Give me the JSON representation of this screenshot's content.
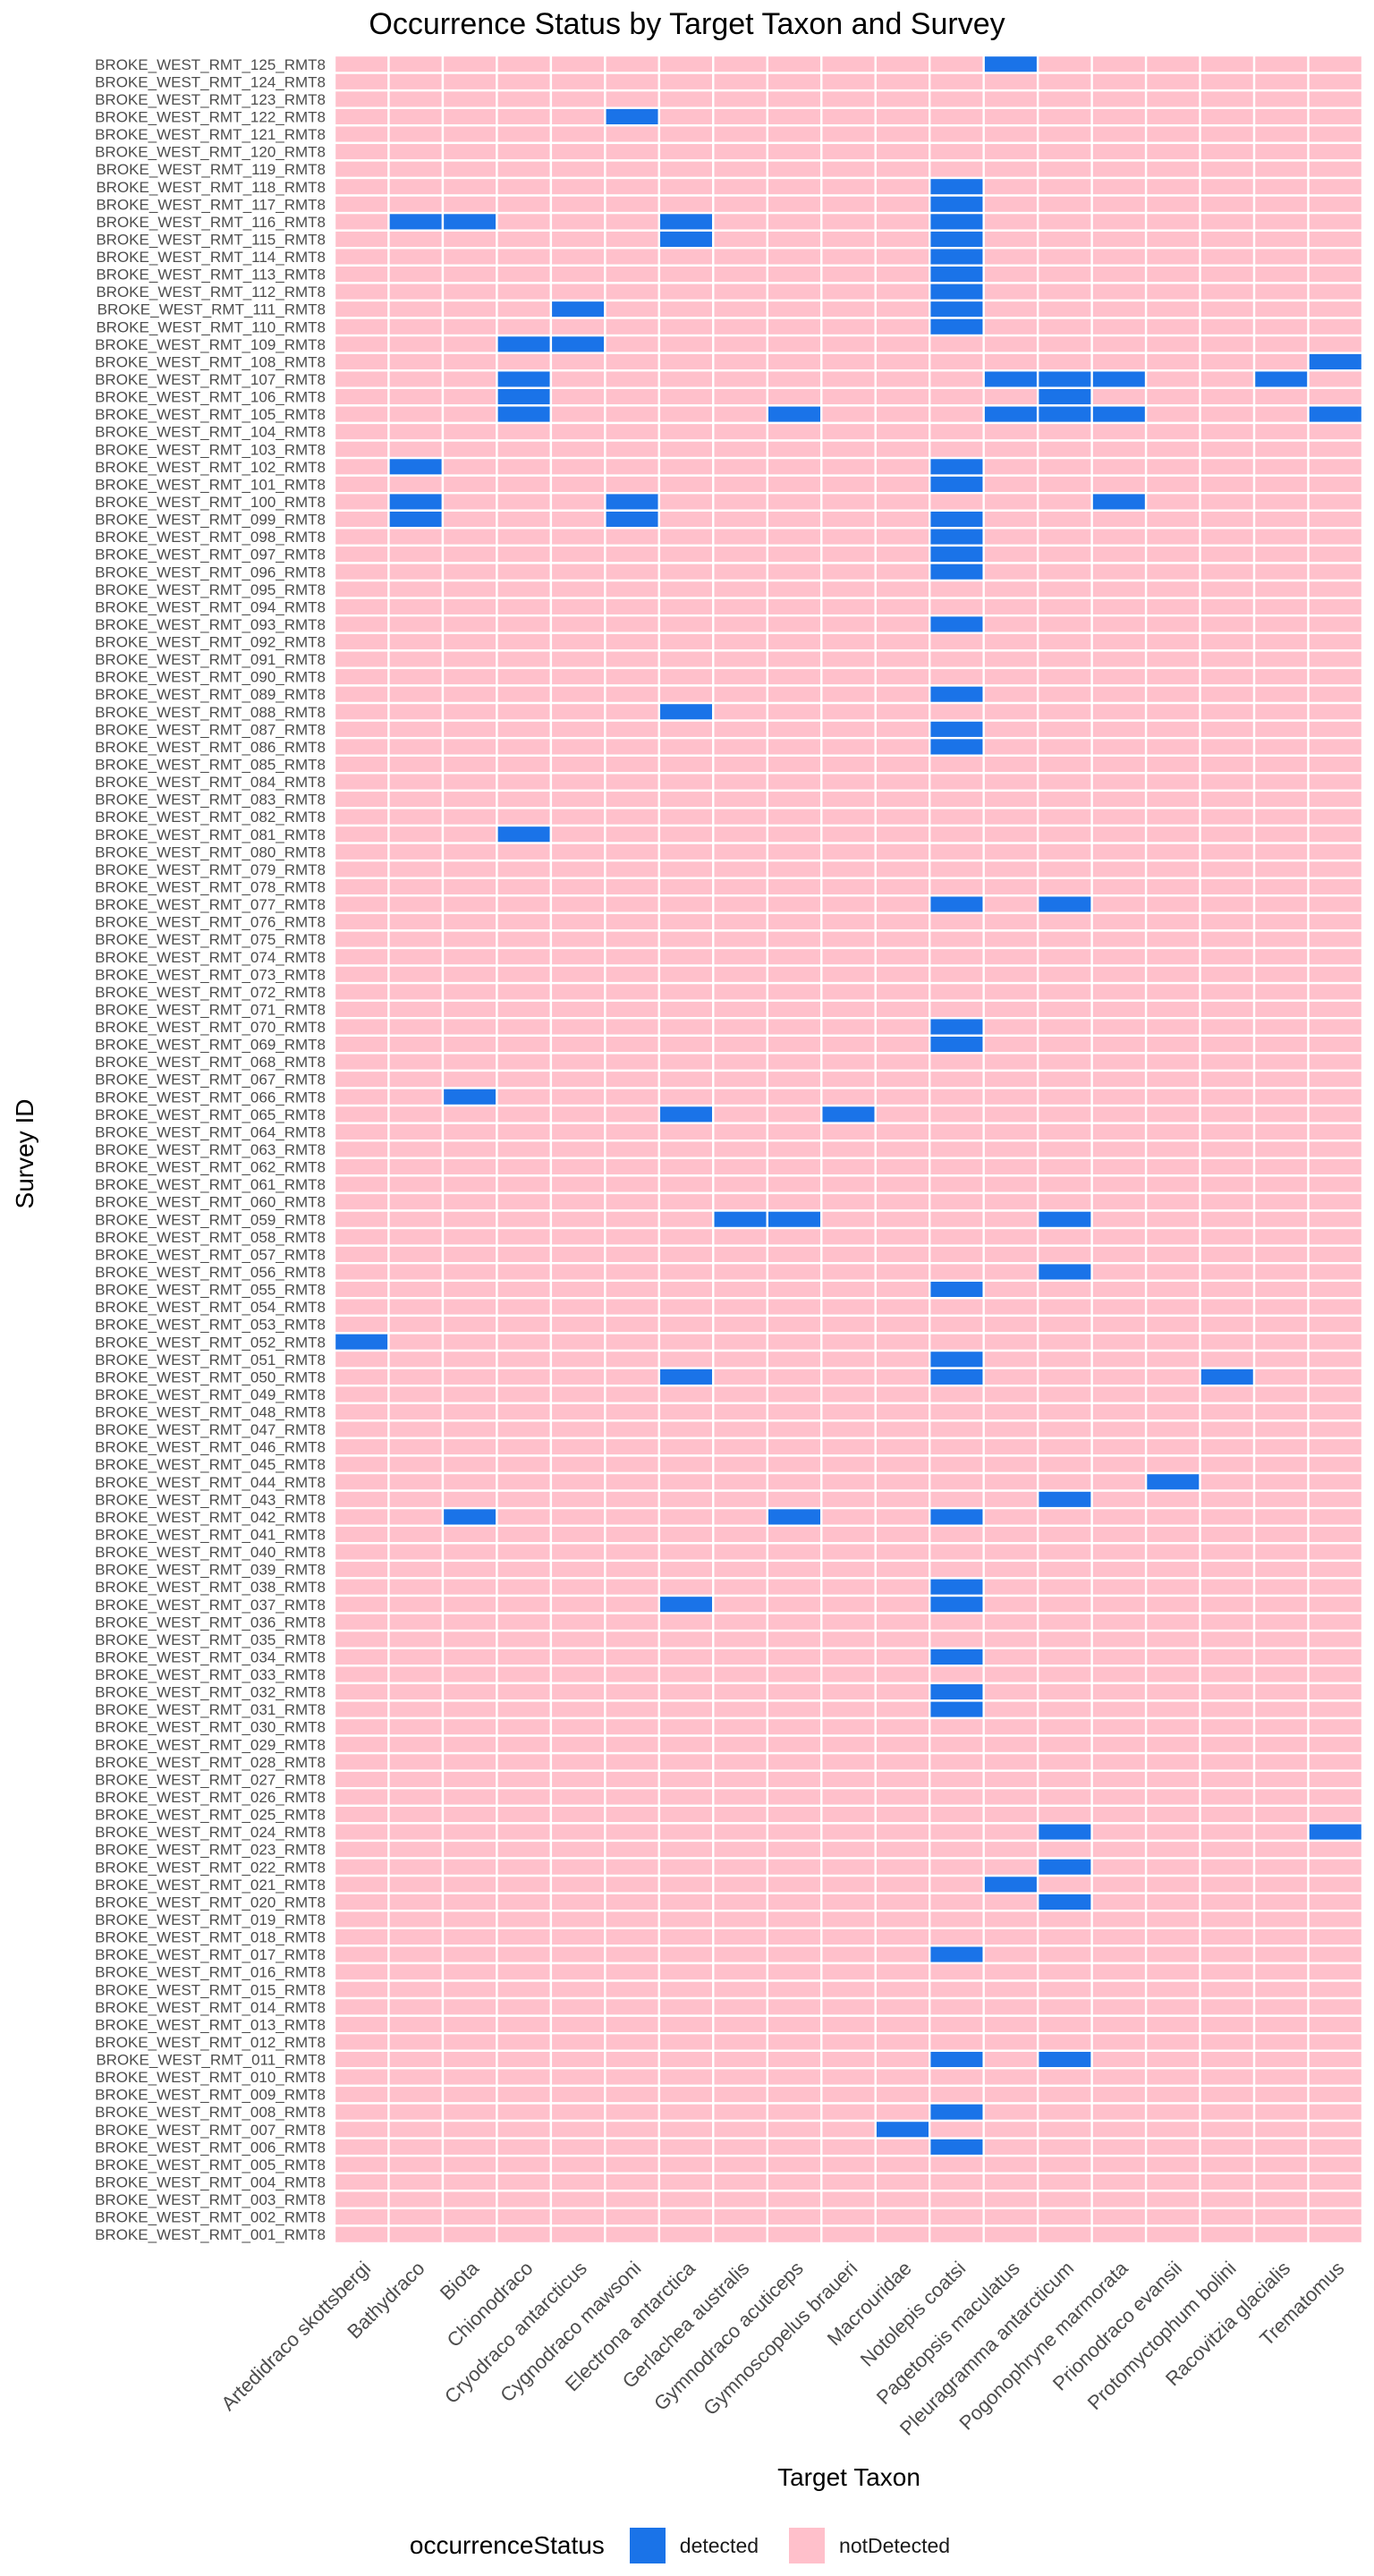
{
  "chart_data": {
    "type": "heatmap",
    "title": "Occurrence Status by Target Taxon and Survey",
    "xlabel": "Target Taxon",
    "ylabel": "Survey ID",
    "legend_title": "occurrenceStatus",
    "legend_position": "bottom",
    "categories_status": [
      "detected",
      "notDetected"
    ],
    "colors": {
      "detected": "#1a73e8",
      "notDetected": "#ffc0cb"
    },
    "x": [
      "Artedidraco skottsbergi",
      "Bathydraco",
      "Biota",
      "Chionodraco",
      "Cryodraco antarcticus",
      "Cygnodraco mawsoni",
      "Electrona antarctica",
      "Gerlachea australis",
      "Gymnodraco acuticeps",
      "Gymnoscopelus braueri",
      "Macrouridae",
      "Notolepis coatsi",
      "Pagetopsis maculatus",
      "Pleuragramma antarcticum",
      "Pogonophryne marmorata",
      "Prionodraco evansii",
      "Protomyctophum bolini",
      "Racovitzia glacialis",
      "Trematomus"
    ],
    "y": [
      "BROKE_WEST_RMT_125_RMT8",
      "BROKE_WEST_RMT_124_RMT8",
      "BROKE_WEST_RMT_123_RMT8",
      "BROKE_WEST_RMT_122_RMT8",
      "BROKE_WEST_RMT_121_RMT8",
      "BROKE_WEST_RMT_120_RMT8",
      "BROKE_WEST_RMT_119_RMT8",
      "BROKE_WEST_RMT_118_RMT8",
      "BROKE_WEST_RMT_117_RMT8",
      "BROKE_WEST_RMT_116_RMT8",
      "BROKE_WEST_RMT_115_RMT8",
      "BROKE_WEST_RMT_114_RMT8",
      "BROKE_WEST_RMT_113_RMT8",
      "BROKE_WEST_RMT_112_RMT8",
      "BROKE_WEST_RMT_111_RMT8",
      "BROKE_WEST_RMT_110_RMT8",
      "BROKE_WEST_RMT_109_RMT8",
      "BROKE_WEST_RMT_108_RMT8",
      "BROKE_WEST_RMT_107_RMT8",
      "BROKE_WEST_RMT_106_RMT8",
      "BROKE_WEST_RMT_105_RMT8",
      "BROKE_WEST_RMT_104_RMT8",
      "BROKE_WEST_RMT_103_RMT8",
      "BROKE_WEST_RMT_102_RMT8",
      "BROKE_WEST_RMT_101_RMT8",
      "BROKE_WEST_RMT_100_RMT8",
      "BROKE_WEST_RMT_099_RMT8",
      "BROKE_WEST_RMT_098_RMT8",
      "BROKE_WEST_RMT_097_RMT8",
      "BROKE_WEST_RMT_096_RMT8",
      "BROKE_WEST_RMT_095_RMT8",
      "BROKE_WEST_RMT_094_RMT8",
      "BROKE_WEST_RMT_093_RMT8",
      "BROKE_WEST_RMT_092_RMT8",
      "BROKE_WEST_RMT_091_RMT8",
      "BROKE_WEST_RMT_090_RMT8",
      "BROKE_WEST_RMT_089_RMT8",
      "BROKE_WEST_RMT_088_RMT8",
      "BROKE_WEST_RMT_087_RMT8",
      "BROKE_WEST_RMT_086_RMT8",
      "BROKE_WEST_RMT_085_RMT8",
      "BROKE_WEST_RMT_084_RMT8",
      "BROKE_WEST_RMT_083_RMT8",
      "BROKE_WEST_RMT_082_RMT8",
      "BROKE_WEST_RMT_081_RMT8",
      "BROKE_WEST_RMT_080_RMT8",
      "BROKE_WEST_RMT_079_RMT8",
      "BROKE_WEST_RMT_078_RMT8",
      "BROKE_WEST_RMT_077_RMT8",
      "BROKE_WEST_RMT_076_RMT8",
      "BROKE_WEST_RMT_075_RMT8",
      "BROKE_WEST_RMT_074_RMT8",
      "BROKE_WEST_RMT_073_RMT8",
      "BROKE_WEST_RMT_072_RMT8",
      "BROKE_WEST_RMT_071_RMT8",
      "BROKE_WEST_RMT_070_RMT8",
      "BROKE_WEST_RMT_069_RMT8",
      "BROKE_WEST_RMT_068_RMT8",
      "BROKE_WEST_RMT_067_RMT8",
      "BROKE_WEST_RMT_066_RMT8",
      "BROKE_WEST_RMT_065_RMT8",
      "BROKE_WEST_RMT_064_RMT8",
      "BROKE_WEST_RMT_063_RMT8",
      "BROKE_WEST_RMT_062_RMT8",
      "BROKE_WEST_RMT_061_RMT8",
      "BROKE_WEST_RMT_060_RMT8",
      "BROKE_WEST_RMT_059_RMT8",
      "BROKE_WEST_RMT_058_RMT8",
      "BROKE_WEST_RMT_057_RMT8",
      "BROKE_WEST_RMT_056_RMT8",
      "BROKE_WEST_RMT_055_RMT8",
      "BROKE_WEST_RMT_054_RMT8",
      "BROKE_WEST_RMT_053_RMT8",
      "BROKE_WEST_RMT_052_RMT8",
      "BROKE_WEST_RMT_051_RMT8",
      "BROKE_WEST_RMT_050_RMT8",
      "BROKE_WEST_RMT_049_RMT8",
      "BROKE_WEST_RMT_048_RMT8",
      "BROKE_WEST_RMT_047_RMT8",
      "BROKE_WEST_RMT_046_RMT8",
      "BROKE_WEST_RMT_045_RMT8",
      "BROKE_WEST_RMT_044_RMT8",
      "BROKE_WEST_RMT_043_RMT8",
      "BROKE_WEST_RMT_042_RMT8",
      "BROKE_WEST_RMT_041_RMT8",
      "BROKE_WEST_RMT_040_RMT8",
      "BROKE_WEST_RMT_039_RMT8",
      "BROKE_WEST_RMT_038_RMT8",
      "BROKE_WEST_RMT_037_RMT8",
      "BROKE_WEST_RMT_036_RMT8",
      "BROKE_WEST_RMT_035_RMT8",
      "BROKE_WEST_RMT_034_RMT8",
      "BROKE_WEST_RMT_033_RMT8",
      "BROKE_WEST_RMT_032_RMT8",
      "BROKE_WEST_RMT_031_RMT8",
      "BROKE_WEST_RMT_030_RMT8",
      "BROKE_WEST_RMT_029_RMT8",
      "BROKE_WEST_RMT_028_RMT8",
      "BROKE_WEST_RMT_027_RMT8",
      "BROKE_WEST_RMT_026_RMT8",
      "BROKE_WEST_RMT_025_RMT8",
      "BROKE_WEST_RMT_024_RMT8",
      "BROKE_WEST_RMT_023_RMT8",
      "BROKE_WEST_RMT_022_RMT8",
      "BROKE_WEST_RMT_021_RMT8",
      "BROKE_WEST_RMT_020_RMT8",
      "BROKE_WEST_RMT_019_RMT8",
      "BROKE_WEST_RMT_018_RMT8",
      "BROKE_WEST_RMT_017_RMT8",
      "BROKE_WEST_RMT_016_RMT8",
      "BROKE_WEST_RMT_015_RMT8",
      "BROKE_WEST_RMT_014_RMT8",
      "BROKE_WEST_RMT_013_RMT8",
      "BROKE_WEST_RMT_012_RMT8",
      "BROKE_WEST_RMT_011_RMT8",
      "BROKE_WEST_RMT_010_RMT8",
      "BROKE_WEST_RMT_009_RMT8",
      "BROKE_WEST_RMT_008_RMT8",
      "BROKE_WEST_RMT_007_RMT8",
      "BROKE_WEST_RMT_006_RMT8",
      "BROKE_WEST_RMT_005_RMT8",
      "BROKE_WEST_RMT_004_RMT8",
      "BROKE_WEST_RMT_003_RMT8",
      "BROKE_WEST_RMT_002_RMT8",
      "BROKE_WEST_RMT_001_RMT8"
    ],
    "default_status": "notDetected",
    "detected": [
      [
        "BROKE_WEST_RMT_125_RMT8",
        "Pagetopsis maculatus"
      ],
      [
        "BROKE_WEST_RMT_122_RMT8",
        "Cygnodraco mawsoni"
      ],
      [
        "BROKE_WEST_RMT_118_RMT8",
        "Notolepis coatsi"
      ],
      [
        "BROKE_WEST_RMT_117_RMT8",
        "Notolepis coatsi"
      ],
      [
        "BROKE_WEST_RMT_116_RMT8",
        "Bathydraco"
      ],
      [
        "BROKE_WEST_RMT_116_RMT8",
        "Biota"
      ],
      [
        "BROKE_WEST_RMT_116_RMT8",
        "Electrona antarctica"
      ],
      [
        "BROKE_WEST_RMT_116_RMT8",
        "Notolepis coatsi"
      ],
      [
        "BROKE_WEST_RMT_115_RMT8",
        "Electrona antarctica"
      ],
      [
        "BROKE_WEST_RMT_115_RMT8",
        "Notolepis coatsi"
      ],
      [
        "BROKE_WEST_RMT_114_RMT8",
        "Notolepis coatsi"
      ],
      [
        "BROKE_WEST_RMT_113_RMT8",
        "Notolepis coatsi"
      ],
      [
        "BROKE_WEST_RMT_112_RMT8",
        "Notolepis coatsi"
      ],
      [
        "BROKE_WEST_RMT_111_RMT8",
        "Cryodraco antarcticus"
      ],
      [
        "BROKE_WEST_RMT_111_RMT8",
        "Notolepis coatsi"
      ],
      [
        "BROKE_WEST_RMT_110_RMT8",
        "Notolepis coatsi"
      ],
      [
        "BROKE_WEST_RMT_109_RMT8",
        "Chionodraco"
      ],
      [
        "BROKE_WEST_RMT_109_RMT8",
        "Cryodraco antarcticus"
      ],
      [
        "BROKE_WEST_RMT_108_RMT8",
        "Trematomus"
      ],
      [
        "BROKE_WEST_RMT_107_RMT8",
        "Chionodraco"
      ],
      [
        "BROKE_WEST_RMT_107_RMT8",
        "Pagetopsis maculatus"
      ],
      [
        "BROKE_WEST_RMT_107_RMT8",
        "Pleuragramma antarcticum"
      ],
      [
        "BROKE_WEST_RMT_107_RMT8",
        "Pogonophryne marmorata"
      ],
      [
        "BROKE_WEST_RMT_107_RMT8",
        "Racovitzia glacialis"
      ],
      [
        "BROKE_WEST_RMT_106_RMT8",
        "Chionodraco"
      ],
      [
        "BROKE_WEST_RMT_106_RMT8",
        "Pleuragramma antarcticum"
      ],
      [
        "BROKE_WEST_RMT_105_RMT8",
        "Chionodraco"
      ],
      [
        "BROKE_WEST_RMT_105_RMT8",
        "Gymnodraco acuticeps"
      ],
      [
        "BROKE_WEST_RMT_105_RMT8",
        "Pagetopsis maculatus"
      ],
      [
        "BROKE_WEST_RMT_105_RMT8",
        "Pleuragramma antarcticum"
      ],
      [
        "BROKE_WEST_RMT_105_RMT8",
        "Pogonophryne marmorata"
      ],
      [
        "BROKE_WEST_RMT_105_RMT8",
        "Trematomus"
      ],
      [
        "BROKE_WEST_RMT_102_RMT8",
        "Bathydraco"
      ],
      [
        "BROKE_WEST_RMT_102_RMT8",
        "Notolepis coatsi"
      ],
      [
        "BROKE_WEST_RMT_101_RMT8",
        "Notolepis coatsi"
      ],
      [
        "BROKE_WEST_RMT_100_RMT8",
        "Bathydraco"
      ],
      [
        "BROKE_WEST_RMT_100_RMT8",
        "Cygnodraco mawsoni"
      ],
      [
        "BROKE_WEST_RMT_100_RMT8",
        "Pogonophryne marmorata"
      ],
      [
        "BROKE_WEST_RMT_099_RMT8",
        "Bathydraco"
      ],
      [
        "BROKE_WEST_RMT_099_RMT8",
        "Cygnodraco mawsoni"
      ],
      [
        "BROKE_WEST_RMT_099_RMT8",
        "Notolepis coatsi"
      ],
      [
        "BROKE_WEST_RMT_098_RMT8",
        "Notolepis coatsi"
      ],
      [
        "BROKE_WEST_RMT_097_RMT8",
        "Notolepis coatsi"
      ],
      [
        "BROKE_WEST_RMT_096_RMT8",
        "Notolepis coatsi"
      ],
      [
        "BROKE_WEST_RMT_093_RMT8",
        "Notolepis coatsi"
      ],
      [
        "BROKE_WEST_RMT_089_RMT8",
        "Notolepis coatsi"
      ],
      [
        "BROKE_WEST_RMT_088_RMT8",
        "Electrona antarctica"
      ],
      [
        "BROKE_WEST_RMT_087_RMT8",
        "Notolepis coatsi"
      ],
      [
        "BROKE_WEST_RMT_086_RMT8",
        "Notolepis coatsi"
      ],
      [
        "BROKE_WEST_RMT_081_RMT8",
        "Chionodraco"
      ],
      [
        "BROKE_WEST_RMT_077_RMT8",
        "Notolepis coatsi"
      ],
      [
        "BROKE_WEST_RMT_077_RMT8",
        "Pleuragramma antarcticum"
      ],
      [
        "BROKE_WEST_RMT_070_RMT8",
        "Notolepis coatsi"
      ],
      [
        "BROKE_WEST_RMT_069_RMT8",
        "Notolepis coatsi"
      ],
      [
        "BROKE_WEST_RMT_066_RMT8",
        "Biota"
      ],
      [
        "BROKE_WEST_RMT_065_RMT8",
        "Electrona antarctica"
      ],
      [
        "BROKE_WEST_RMT_065_RMT8",
        "Gymnoscopelus braueri"
      ],
      [
        "BROKE_WEST_RMT_059_RMT8",
        "Gerlachea australis"
      ],
      [
        "BROKE_WEST_RMT_059_RMT8",
        "Gymnodraco acuticeps"
      ],
      [
        "BROKE_WEST_RMT_059_RMT8",
        "Pleuragramma antarcticum"
      ],
      [
        "BROKE_WEST_RMT_056_RMT8",
        "Pleuragramma antarcticum"
      ],
      [
        "BROKE_WEST_RMT_055_RMT8",
        "Notolepis coatsi"
      ],
      [
        "BROKE_WEST_RMT_052_RMT8",
        "Artedidraco skottsbergi"
      ],
      [
        "BROKE_WEST_RMT_051_RMT8",
        "Notolepis coatsi"
      ],
      [
        "BROKE_WEST_RMT_050_RMT8",
        "Electrona antarctica"
      ],
      [
        "BROKE_WEST_RMT_050_RMT8",
        "Notolepis coatsi"
      ],
      [
        "BROKE_WEST_RMT_050_RMT8",
        "Protomyctophum bolini"
      ],
      [
        "BROKE_WEST_RMT_044_RMT8",
        "Prionodraco evansii"
      ],
      [
        "BROKE_WEST_RMT_043_RMT8",
        "Pleuragramma antarcticum"
      ],
      [
        "BROKE_WEST_RMT_042_RMT8",
        "Biota"
      ],
      [
        "BROKE_WEST_RMT_042_RMT8",
        "Gymnodraco acuticeps"
      ],
      [
        "BROKE_WEST_RMT_042_RMT8",
        "Notolepis coatsi"
      ],
      [
        "BROKE_WEST_RMT_038_RMT8",
        "Notolepis coatsi"
      ],
      [
        "BROKE_WEST_RMT_037_RMT8",
        "Electrona antarctica"
      ],
      [
        "BROKE_WEST_RMT_037_RMT8",
        "Notolepis coatsi"
      ],
      [
        "BROKE_WEST_RMT_034_RMT8",
        "Notolepis coatsi"
      ],
      [
        "BROKE_WEST_RMT_032_RMT8",
        "Notolepis coatsi"
      ],
      [
        "BROKE_WEST_RMT_031_RMT8",
        "Notolepis coatsi"
      ],
      [
        "BROKE_WEST_RMT_024_RMT8",
        "Pleuragramma antarcticum"
      ],
      [
        "BROKE_WEST_RMT_024_RMT8",
        "Trematomus"
      ],
      [
        "BROKE_WEST_RMT_022_RMT8",
        "Pleuragramma antarcticum"
      ],
      [
        "BROKE_WEST_RMT_021_RMT8",
        "Pagetopsis maculatus"
      ],
      [
        "BROKE_WEST_RMT_020_RMT8",
        "Pleuragramma antarcticum"
      ],
      [
        "BROKE_WEST_RMT_017_RMT8",
        "Notolepis coatsi"
      ],
      [
        "BROKE_WEST_RMT_011_RMT8",
        "Notolepis coatsi"
      ],
      [
        "BROKE_WEST_RMT_011_RMT8",
        "Pleuragramma antarcticum"
      ],
      [
        "BROKE_WEST_RMT_008_RMT8",
        "Notolepis coatsi"
      ],
      [
        "BROKE_WEST_RMT_007_RMT8",
        "Macrouridae"
      ],
      [
        "BROKE_WEST_RMT_006_RMT8",
        "Notolepis coatsi"
      ]
    ]
  }
}
